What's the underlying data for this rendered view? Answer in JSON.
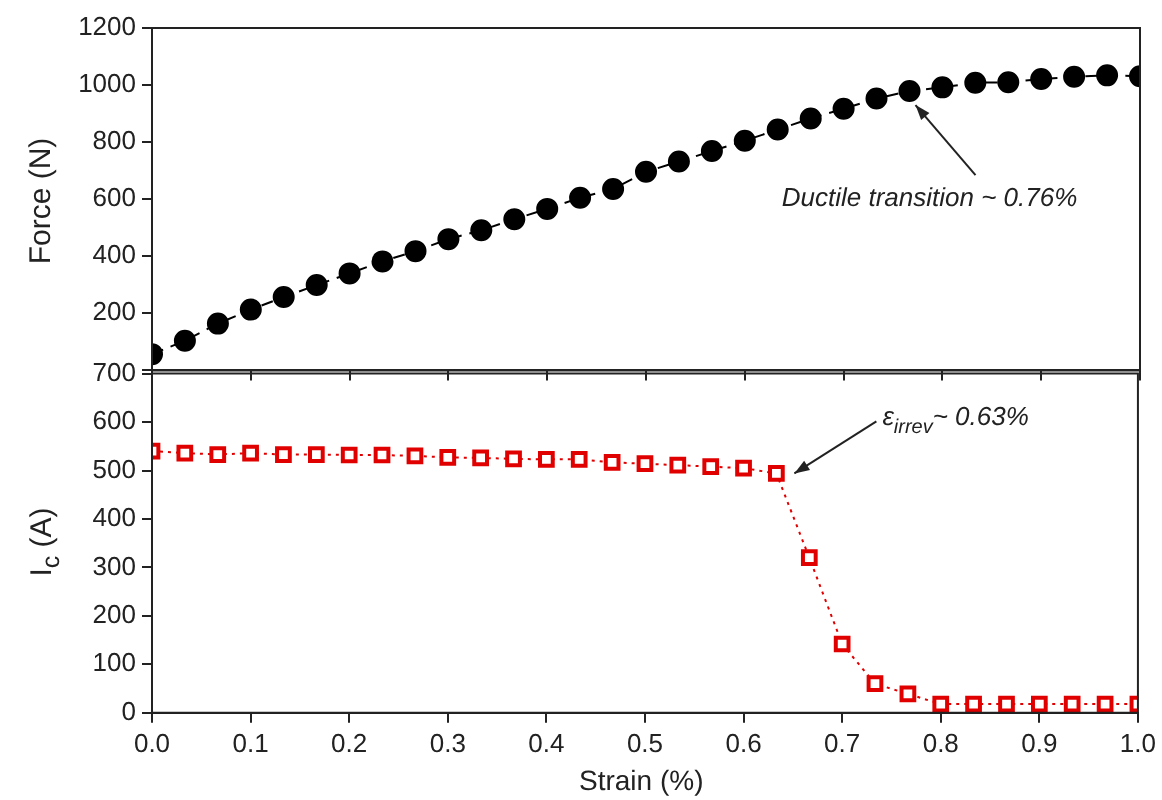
{
  "chart_data": [
    {
      "type": "line",
      "ylabel": "Force (N)",
      "marker": "circle",
      "line_style": "dashed",
      "tick_labels": "y",
      "grid": false,
      "legend": false,
      "x": [
        0,
        0.0333,
        0.0667,
        0.1,
        0.1333,
        0.1667,
        0.2,
        0.2333,
        0.2667,
        0.3,
        0.3333,
        0.3667,
        0.4,
        0.4333,
        0.4667,
        0.5,
        0.5333,
        0.5667,
        0.6,
        0.6333,
        0.6667,
        0.7,
        0.7333,
        0.7667,
        0.8,
        0.8333,
        0.8667,
        0.9,
        0.9333,
        0.9667,
        1.0
      ],
      "series": [
        {
          "color": "#000000",
          "values": [
            57,
            104,
            164,
            213,
            257,
            299,
            340,
            382,
            418,
            460,
            491,
            530,
            566,
            605,
            636,
            696,
            732,
            769,
            805,
            844,
            883,
            917,
            953,
            979,
            992,
            1008,
            1010,
            1021,
            1029,
            1034,
            1031
          ]
        }
      ],
      "xlim": [
        0,
        1.0
      ],
      "xticks": [
        {
          "value": 0,
          "label": null
        },
        {
          "value": 0.1,
          "label": null
        },
        {
          "value": 0.2,
          "label": null
        },
        {
          "value": 0.3,
          "label": null
        },
        {
          "value": 0.4,
          "label": null
        },
        {
          "value": 0.5,
          "label": null
        },
        {
          "value": 0.6,
          "label": null
        },
        {
          "value": 0.7,
          "label": null
        },
        {
          "value": 0.8,
          "label": null
        },
        {
          "value": 0.9,
          "label": null
        },
        {
          "value": 1.0,
          "label": null
        }
      ],
      "ylim": [
        0,
        1200
      ],
      "yticks": [
        {
          "value": 0,
          "label": null
        },
        200,
        400,
        600,
        800,
        1000,
        1200
      ],
      "annotations": [
        {
          "text": "Ductile transition ~ 0.76%",
          "x": 0.7667,
          "y": 979
        }
      ]
    },
    {
      "type": "line",
      "xlabel": "Strain (%)",
      "ylabel": "I$_{c}$ (A)",
      "marker": "square",
      "line_style": "dotted",
      "grid": false,
      "legend": false,
      "x": [
        0,
        0.0333,
        0.0667,
        0.1,
        0.1333,
        0.1667,
        0.2,
        0.2333,
        0.2667,
        0.3,
        0.3333,
        0.3667,
        0.4,
        0.4333,
        0.4667,
        0.5,
        0.5333,
        0.5667,
        0.6,
        0.6333,
        0.6667,
        0.7,
        0.7333,
        0.7667,
        0.8,
        0.8333,
        0.8667,
        0.9,
        0.9333,
        0.9667,
        1.0
      ],
      "series": [
        {
          "color": "#e00000",
          "values": [
            540,
            536,
            533,
            536,
            533,
            533,
            532,
            532,
            530,
            527,
            526,
            524,
            523,
            523,
            517,
            514,
            511,
            508,
            505,
            494,
            320,
            142,
            60,
            39,
            18,
            18,
            18,
            18,
            18,
            18,
            18
          ]
        }
      ],
      "xlim": [
        0,
        1.0
      ],
      "xticks": [
        {
          "value": 0,
          "label": "0.0"
        },
        0.1,
        0.2,
        0.3,
        0.4,
        0.5,
        0.6,
        0.7,
        0.8,
        0.9,
        {
          "value": 1.0,
          "label": "1.0"
        }
      ],
      "ylim": [
        0,
        700
      ],
      "yticks": [
        0,
        100,
        200,
        300,
        400,
        500,
        600,
        700
      ],
      "annotations": [
        {
          "text": "ε$_{irrev}$~ 0.63%",
          "x": 0.6333,
          "y": 494
        }
      ]
    }
  ]
}
